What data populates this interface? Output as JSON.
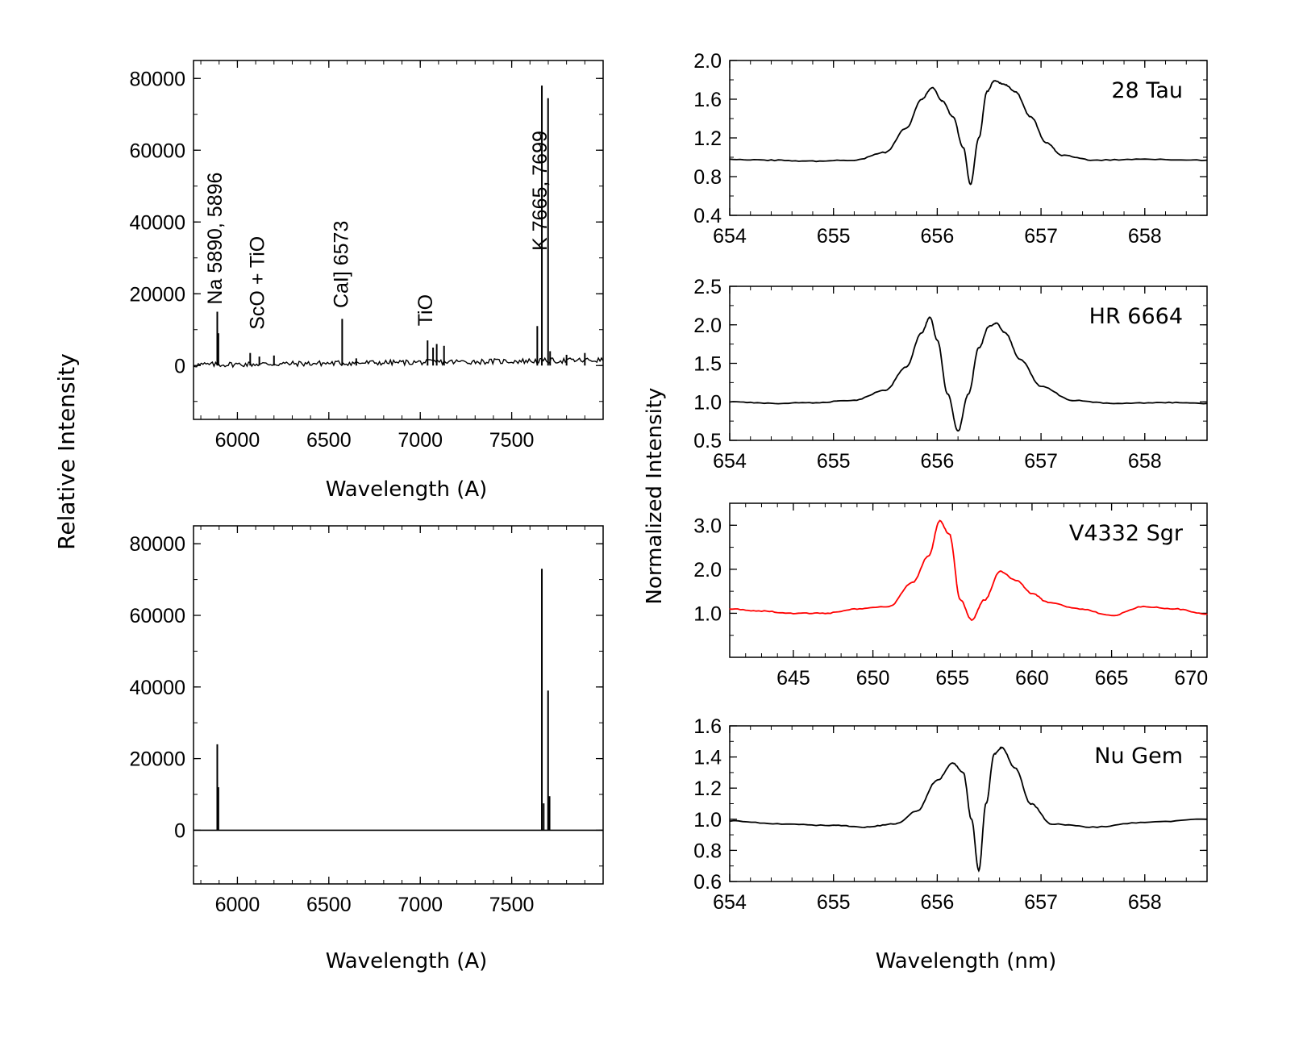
{
  "figure": {
    "left_ylabel": "Relative Intensity",
    "right_ylabel": "Normalized Intensity",
    "right_xlabel": "Wavelength (nm)"
  },
  "chart_data": [
    {
      "id": "top-left",
      "type": "line",
      "title": "",
      "xlabel": "Wavelength (A)",
      "ylabel": "",
      "xlim": [
        5760,
        8000
      ],
      "ylim": [
        -15000,
        85000
      ],
      "xticks": [
        6000,
        6500,
        7000,
        7500
      ],
      "yticks": [
        0,
        20000,
        40000,
        60000,
        80000
      ],
      "color": "#000000",
      "baseline_from": [
        5760,
        200
      ],
      "baseline_to": [
        8000,
        1500
      ],
      "spikes": [
        {
          "x": 5890,
          "y": 15000
        },
        {
          "x": 5896,
          "y": 9000
        },
        {
          "x": 6070,
          "y": 3500
        },
        {
          "x": 6120,
          "y": 2500
        },
        {
          "x": 6200,
          "y": 2800
        },
        {
          "x": 6573,
          "y": 13000
        },
        {
          "x": 6650,
          "y": 2000
        },
        {
          "x": 7040,
          "y": 7000
        },
        {
          "x": 7070,
          "y": 5000
        },
        {
          "x": 7090,
          "y": 6000
        },
        {
          "x": 7130,
          "y": 5500
        },
        {
          "x": 7665,
          "y": 78000
        },
        {
          "x": 7699,
          "y": 74500
        },
        {
          "x": 7640,
          "y": 11000
        },
        {
          "x": 7710,
          "y": 4000
        },
        {
          "x": 7800,
          "y": 3000
        },
        {
          "x": 7900,
          "y": 3500
        }
      ],
      "annotations": [
        {
          "text": "Na 5890, 5896",
          "x": 5880,
          "y": 17000
        },
        {
          "text": "ScO + TiO",
          "x": 6110,
          "y": 10000
        },
        {
          "text": "CaI] 6573",
          "x": 6570,
          "y": 16000
        },
        {
          "text": "TiO",
          "x": 7030,
          "y": 11000
        },
        {
          "text": "K 7665,  7699",
          "x": 7655,
          "y": 32000
        }
      ]
    },
    {
      "id": "bottom-left",
      "type": "line",
      "title": "",
      "xlabel": "Wavelength (A)",
      "ylabel": "",
      "xlim": [
        5760,
        8000
      ],
      "ylim": [
        -15000,
        85000
      ],
      "xticks": [
        6000,
        6500,
        7000,
        7500
      ],
      "yticks": [
        0,
        20000,
        40000,
        60000,
        80000
      ],
      "color": "#000000",
      "spikes": [
        {
          "x": 5890,
          "y": 24000
        },
        {
          "x": 5896,
          "y": 12000
        },
        {
          "x": 7665,
          "y": 73000
        },
        {
          "x": 7675,
          "y": 7500
        },
        {
          "x": 7699,
          "y": 39000
        },
        {
          "x": 7707,
          "y": 9500
        }
      ]
    },
    {
      "id": "28-tau",
      "type": "line",
      "title": "28 Tau",
      "xlabel": "",
      "ylabel": "",
      "xlim": [
        654,
        658.6
      ],
      "ylim": [
        0.4,
        2.0
      ],
      "xticks": [
        654,
        655,
        656,
        657,
        658
      ],
      "yticks": [
        0.4,
        0.8,
        1.2,
        1.6,
        2.0
      ],
      "ytick_labels": [
        "0.4",
        "0.8",
        "1.2",
        "1.6",
        "2.0"
      ],
      "color": "#000000",
      "x": [
        654.0,
        654.4,
        654.8,
        655.2,
        655.5,
        655.7,
        655.85,
        655.95,
        656.05,
        656.15,
        656.25,
        656.32,
        656.4,
        656.48,
        656.55,
        656.65,
        656.75,
        656.9,
        657.05,
        657.2,
        657.5,
        658.0,
        658.6
      ],
      "values": [
        0.98,
        0.97,
        0.96,
        0.97,
        1.05,
        1.3,
        1.6,
        1.72,
        1.58,
        1.42,
        1.1,
        0.72,
        1.2,
        1.68,
        1.79,
        1.75,
        1.68,
        1.42,
        1.15,
        1.02,
        0.97,
        0.98,
        0.97
      ]
    },
    {
      "id": "hr-6664",
      "type": "line",
      "title": "HR 6664",
      "xlabel": "",
      "ylabel": "",
      "xlim": [
        654,
        658.6
      ],
      "ylim": [
        0.5,
        2.5
      ],
      "xticks": [
        654,
        655,
        656,
        657,
        658
      ],
      "yticks": [
        0.5,
        1.0,
        1.5,
        2.0,
        2.5
      ],
      "ytick_labels": [
        "0.5",
        "1.0",
        "1.5",
        "2.0",
        "2.5"
      ],
      "color": "#000000",
      "x": [
        654.0,
        654.4,
        654.8,
        655.2,
        655.5,
        655.7,
        655.85,
        655.93,
        656.0,
        656.1,
        656.2,
        656.3,
        656.4,
        656.5,
        656.57,
        656.65,
        656.8,
        657.0,
        657.3,
        657.7,
        658.2,
        658.6
      ],
      "values": [
        1.0,
        0.98,
        0.99,
        1.02,
        1.15,
        1.45,
        1.9,
        2.1,
        1.8,
        1.1,
        0.62,
        1.1,
        1.7,
        1.98,
        2.02,
        1.9,
        1.55,
        1.2,
        1.02,
        0.98,
        0.99,
        0.98
      ]
    },
    {
      "id": "v4332-sgr",
      "type": "line",
      "title": "V4332 Sgr",
      "xlabel": "",
      "ylabel": "",
      "xlim": [
        641,
        671
      ],
      "ylim": [
        0,
        3.5
      ],
      "xticks": [
        645,
        650,
        655,
        660,
        665,
        670
      ],
      "yticks": [
        1.0,
        2.0,
        3.0
      ],
      "ytick_labels": [
        "1.0",
        "2.0",
        "3.0"
      ],
      "color": "#ff0000",
      "x": [
        641,
        643,
        645,
        647,
        649,
        651,
        652.5,
        653.5,
        654.2,
        654.8,
        655.5,
        656.2,
        657,
        658,
        659,
        660,
        661,
        663,
        665,
        667,
        669,
        671
      ],
      "values": [
        1.1,
        1.05,
        1.0,
        1.0,
        1.1,
        1.15,
        1.7,
        2.3,
        3.1,
        2.8,
        1.3,
        0.85,
        1.3,
        1.95,
        1.75,
        1.45,
        1.25,
        1.1,
        0.95,
        1.15,
        1.1,
        0.98
      ]
    },
    {
      "id": "nu-gem",
      "type": "line",
      "title": "Nu Gem",
      "xlabel": "",
      "ylabel": "",
      "xlim": [
        654,
        658.6
      ],
      "ylim": [
        0.6,
        1.6
      ],
      "xticks": [
        654,
        655,
        656,
        657,
        658
      ],
      "yticks": [
        0.6,
        0.8,
        1.0,
        1.2,
        1.4,
        1.6
      ],
      "ytick_labels": [
        "0.6",
        "0.8",
        "1.0",
        "1.2",
        "1.4",
        "1.6"
      ],
      "color": "#000000",
      "x": [
        654.0,
        654.5,
        655.0,
        655.3,
        655.6,
        655.8,
        656.0,
        656.15,
        656.25,
        656.33,
        656.4,
        656.47,
        656.55,
        656.62,
        656.75,
        656.9,
        657.1,
        657.5,
        658.0,
        658.6
      ],
      "values": [
        0.99,
        0.97,
        0.96,
        0.95,
        0.97,
        1.05,
        1.25,
        1.36,
        1.3,
        1.0,
        0.67,
        1.1,
        1.42,
        1.46,
        1.33,
        1.1,
        0.97,
        0.95,
        0.98,
        1.0
      ]
    }
  ]
}
